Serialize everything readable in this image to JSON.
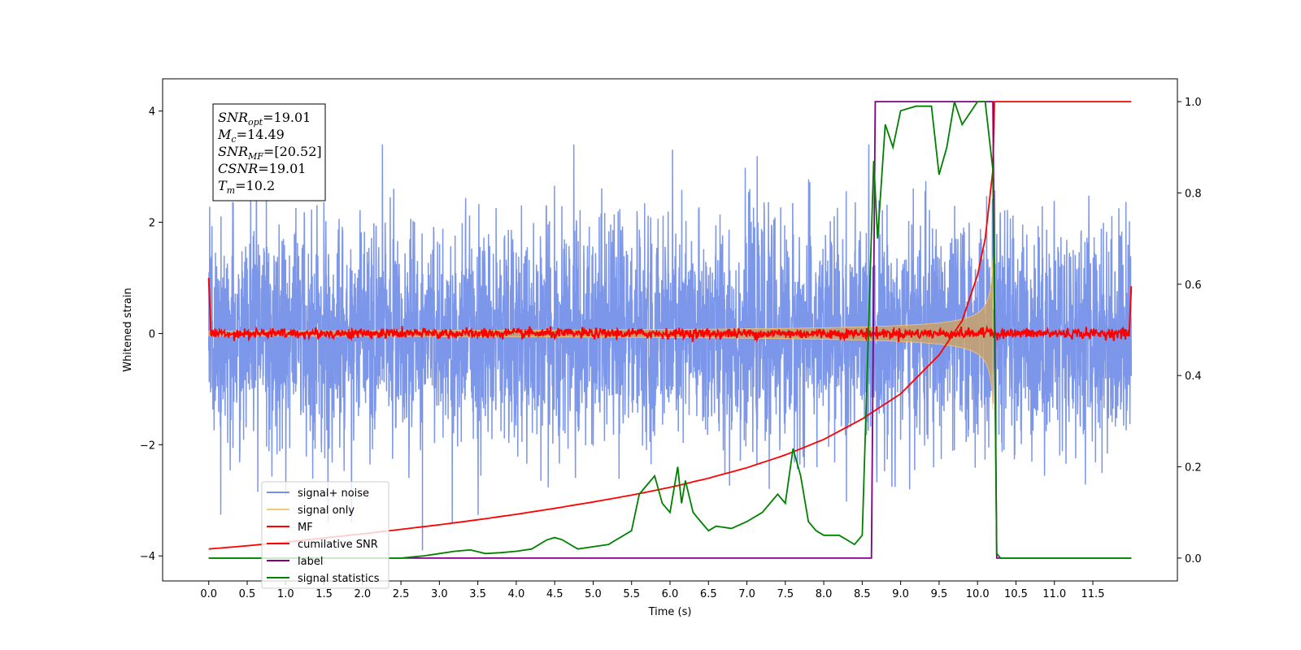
{
  "chart_data": {
    "type": "line",
    "xlabel": "Time (s)",
    "ylabel": "Whitened strain",
    "xlim": [
      -0.6,
      12.6
    ],
    "ylim": [
      -4.45,
      4.58
    ],
    "ylim_right": [
      -0.05,
      1.05
    ],
    "x_ticks": [
      "0.0",
      "0.5",
      "1.0",
      "1.5",
      "2.0",
      "2.5",
      "3.0",
      "3.5",
      "4.0",
      "4.5",
      "5.0",
      "5.5",
      "6.0",
      "6.5",
      "7.0",
      "7.5",
      "8.0",
      "8.5",
      "9.0",
      "9.5",
      "10.0",
      "10.5",
      "11.0",
      "11.5"
    ],
    "y_ticks": [
      "−4",
      "−2",
      "0",
      "2",
      "4"
    ],
    "y_right_ticks": [
      "0.0",
      "0.2",
      "0.4",
      "0.6",
      "0.8",
      "1.0"
    ],
    "legend_position": "lower-left",
    "annotation": {
      "lines": [
        {
          "main": "SNR",
          "sub": "opt",
          "value": "=19.01"
        },
        {
          "main": "M",
          "sub": "c",
          "value": "=14.49"
        },
        {
          "main": "SNR",
          "sub": "MF",
          "value": "=[20.52]"
        },
        {
          "main": "CSNR",
          "sub": "",
          "value": "=19.01"
        },
        {
          "main": "T",
          "sub": "m",
          "value": "=10.2"
        }
      ]
    },
    "series": [
      {
        "name": "signal+ noise",
        "color": "#7590e8",
        "axis": "left",
        "kind": "gaussian_noise",
        "x_range": [
          0.0,
          12.0
        ],
        "std": 1.0
      },
      {
        "name": "signal only",
        "color": "#f5c878",
        "axis": "left",
        "kind": "chirp_envelope",
        "x_range": [
          0.0,
          10.2
        ],
        "merger_time": 10.2
      },
      {
        "name": "MF",
        "color": "#ff0000",
        "axis": "left",
        "kind": "matched_filter",
        "x_range": [
          0.0,
          12.0
        ],
        "start_value": 1.0,
        "end_value": 0.85
      },
      {
        "name": "cumilative SNR",
        "color": "#ff0000",
        "axis": "right",
        "x": [
          0.0,
          0.5,
          1.0,
          1.5,
          2.0,
          2.5,
          3.0,
          3.5,
          4.0,
          4.5,
          5.0,
          5.5,
          6.0,
          6.5,
          7.0,
          7.5,
          8.0,
          8.5,
          9.0,
          9.5,
          9.8,
          10.0,
          10.1,
          10.2,
          10.22,
          12.0
        ],
        "y": [
          0.02,
          0.027,
          0.035,
          0.044,
          0.053,
          0.063,
          0.073,
          0.084,
          0.096,
          0.109,
          0.123,
          0.138,
          0.155,
          0.175,
          0.198,
          0.226,
          0.26,
          0.305,
          0.36,
          0.445,
          0.52,
          0.62,
          0.7,
          0.85,
          1.0,
          1.0
        ]
      },
      {
        "name": "label",
        "color": "#800080",
        "axis": "right",
        "x": [
          0.0,
          8.62,
          8.67,
          10.2,
          10.25,
          12.0
        ],
        "y": [
          0.0,
          0.0,
          1.0,
          1.0,
          0.0,
          0.0
        ]
      },
      {
        "name": "signal statistics",
        "color": "#008000",
        "axis": "right",
        "x": [
          0.0,
          0.5,
          1.0,
          1.5,
          2.0,
          2.5,
          2.8,
          3.0,
          3.2,
          3.4,
          3.6,
          3.8,
          4.0,
          4.2,
          4.4,
          4.5,
          4.6,
          4.8,
          5.0,
          5.2,
          5.3,
          5.5,
          5.6,
          5.7,
          5.8,
          5.9,
          6.0,
          6.1,
          6.15,
          6.2,
          6.3,
          6.4,
          6.5,
          6.6,
          6.8,
          7.0,
          7.2,
          7.4,
          7.5,
          7.6,
          7.7,
          7.8,
          7.9,
          8.0,
          8.2,
          8.3,
          8.4,
          8.5,
          8.6,
          8.65,
          8.7,
          8.8,
          8.9,
          9.0,
          9.2,
          9.4,
          9.5,
          9.6,
          9.7,
          9.8,
          10.0,
          10.1,
          10.2,
          10.25,
          10.3,
          12.0
        ],
        "y": [
          0.0,
          0.0,
          0.0,
          0.0,
          0.0,
          0.0,
          0.005,
          0.01,
          0.015,
          0.018,
          0.01,
          0.012,
          0.015,
          0.02,
          0.04,
          0.045,
          0.04,
          0.02,
          0.025,
          0.03,
          0.04,
          0.06,
          0.14,
          0.16,
          0.18,
          0.12,
          0.1,
          0.2,
          0.12,
          0.17,
          0.1,
          0.08,
          0.06,
          0.07,
          0.065,
          0.08,
          0.1,
          0.14,
          0.12,
          0.24,
          0.18,
          0.08,
          0.06,
          0.05,
          0.05,
          0.04,
          0.03,
          0.05,
          0.6,
          0.87,
          0.7,
          0.95,
          0.9,
          0.98,
          0.99,
          0.99,
          0.84,
          0.9,
          1.0,
          0.95,
          1.0,
          1.0,
          0.85,
          0.01,
          0.0,
          0.0
        ]
      }
    ]
  }
}
